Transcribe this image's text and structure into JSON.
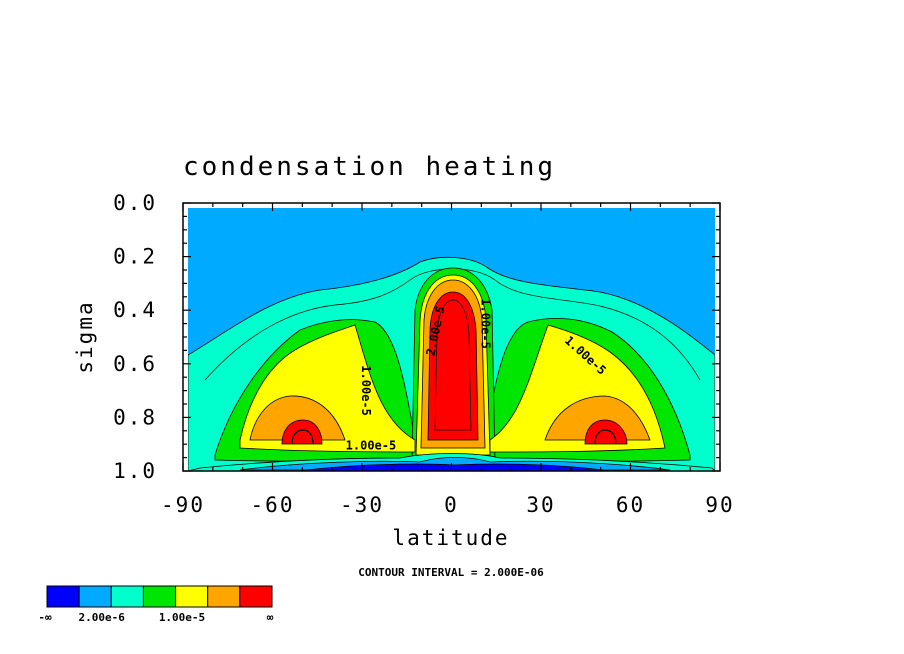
{
  "chart_data": {
    "type": "contour",
    "title": "condensation heating",
    "xlabel": "latitude",
    "ylabel": "sigma",
    "xlim": [
      -90,
      90
    ],
    "ylim": [
      0.0,
      1.0
    ],
    "y_inverted": true,
    "x_ticks": [
      "-90",
      "-60",
      "-30",
      "0",
      "30",
      "60",
      "90"
    ],
    "x_tick_values": [
      -90,
      -60,
      -30,
      0,
      30,
      60,
      90
    ],
    "y_ticks": [
      "0.0",
      "0.2",
      "0.4",
      "0.6",
      "0.8",
      "1.0"
    ],
    "y_tick_values": [
      0.0,
      0.2,
      0.4,
      0.6,
      0.8,
      1.0
    ],
    "contour_interval_text": "CONTOUR INTERVAL = 2.000E-06",
    "contour_labels": [
      {
        "text": "1.00e-5",
        "lat": -30,
        "sigma": 0.7,
        "rotate": 90
      },
      {
        "text": "1.00e-5",
        "lat": 44,
        "sigma": 0.58,
        "rotate": 42
      },
      {
        "text": "1.00e-5",
        "lat": -27,
        "sigma": 0.92,
        "rotate": 0
      },
      {
        "text": "1.00e-5",
        "lat": 10,
        "sigma": 0.45,
        "rotate": 90
      },
      {
        "text": "2.00e-5",
        "lat": -4,
        "sigma": 0.48,
        "rotate": -78
      }
    ],
    "colorbar": {
      "colors": [
        "#0000ff",
        "#00aaff",
        "#00ffcc",
        "#00e600",
        "#ffff00",
        "#ffa500",
        "#ff0000"
      ],
      "labels": [
        "-∞",
        "2.00e-6",
        "1.00e-5",
        "∞"
      ]
    },
    "regions": [
      {
        "name": "upper-atmosphere",
        "color": "#00aaff"
      },
      {
        "name": "midlatitude-heating",
        "color": "#00ffcc"
      },
      {
        "name": "green-heating",
        "color": "#00e600"
      },
      {
        "name": "yellow-heating",
        "color": "#ffff00"
      },
      {
        "name": "orange-heating",
        "color": "#ffa500"
      },
      {
        "name": "red-heating",
        "color": "#ff0000"
      },
      {
        "name": "surface-cooling",
        "color": "#0000ff"
      }
    ]
  }
}
